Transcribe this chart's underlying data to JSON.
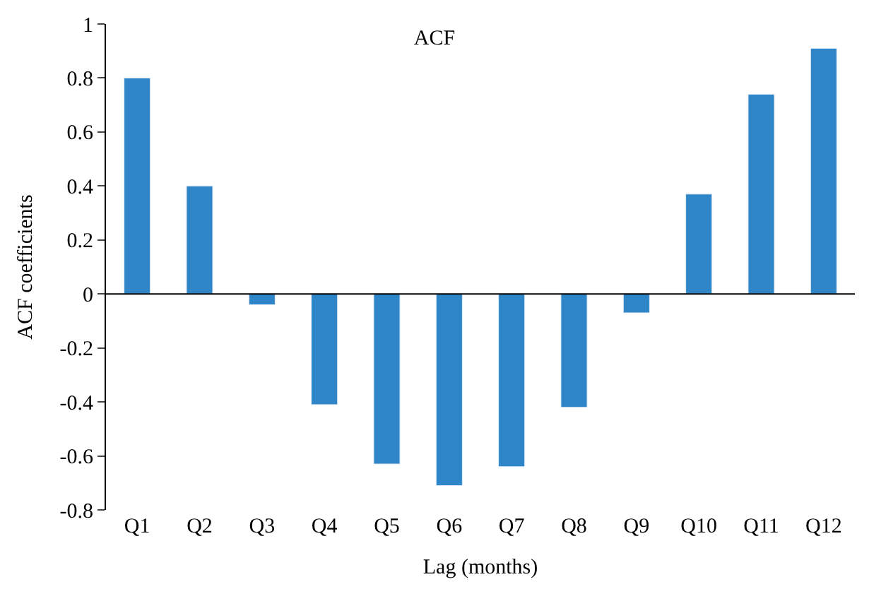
{
  "chart_data": {
    "type": "bar",
    "title": "ACF",
    "xlabel": "Lag (months)",
    "ylabel": "ACF coefficients",
    "categories": [
      "Q1",
      "Q2",
      "Q3",
      "Q4",
      "Q5",
      "Q6",
      "Q7",
      "Q8",
      "Q9",
      "Q10",
      "Q11",
      "Q12"
    ],
    "values": [
      0.8,
      0.4,
      -0.04,
      -0.41,
      -0.63,
      -0.71,
      -0.64,
      -0.42,
      -0.07,
      0.37,
      0.74,
      0.91
    ],
    "color": "#2e86c8",
    "ylim": [
      -0.8,
      1
    ],
    "yticks": [
      -0.8,
      -0.6,
      -0.4,
      -0.2,
      0,
      0.2,
      0.4,
      0.6,
      0.8,
      1
    ],
    "legend": false,
    "ref_lines": [
      {
        "axis": "y",
        "value": 0,
        "color": "#000000"
      }
    ]
  }
}
